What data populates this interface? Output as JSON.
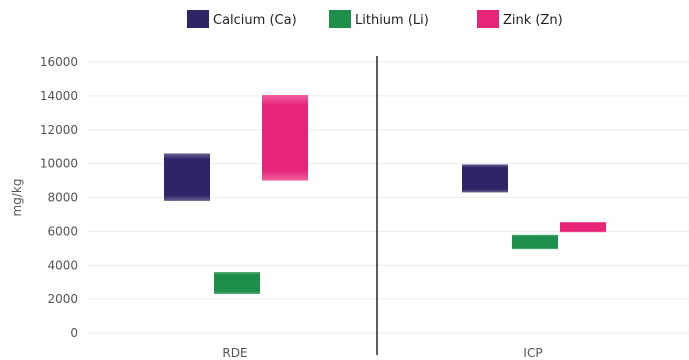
{
  "chart_data": {
    "type": "bar",
    "subtype": "floating-range",
    "title": "",
    "xlabel": "",
    "ylabel": "mg/kg",
    "ylim": [
      0,
      16000
    ],
    "yticks": [
      0,
      2000,
      4000,
      6000,
      8000,
      10000,
      12000,
      14000,
      16000
    ],
    "grid": true,
    "legend_position": "top",
    "categories": [
      "RDE",
      "ICP"
    ],
    "series": [
      {
        "name": "Calcium (Ca)",
        "color": "#2e2466",
        "ranges": [
          [
            7800,
            10600
          ],
          [
            8300,
            9950
          ]
        ]
      },
      {
        "name": "Lithium (Li)",
        "color": "#1e8f4a",
        "ranges": [
          [
            2300,
            3600
          ],
          [
            4950,
            5800
          ]
        ]
      },
      {
        "name": "Zink (Zn)",
        "color": "#e82478",
        "ranges": [
          [
            9000,
            14050
          ],
          [
            5950,
            6550
          ]
        ]
      }
    ]
  }
}
